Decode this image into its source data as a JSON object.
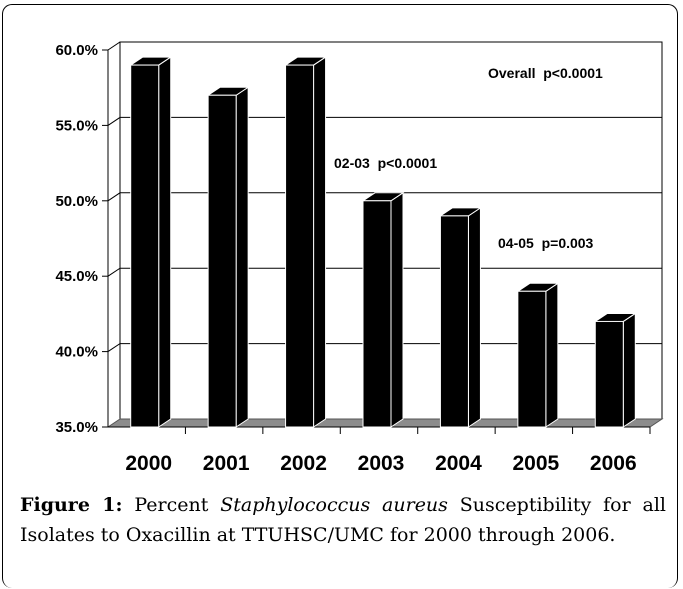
{
  "chart_data": {
    "type": "bar",
    "categories": [
      "2000",
      "2001",
      "2002",
      "2003",
      "2004",
      "2005",
      "2006"
    ],
    "values": [
      59.0,
      57.0,
      59.0,
      50.0,
      49.0,
      44.0,
      42.0
    ],
    "ylim": [
      35,
      60
    ],
    "yticks": [
      "35.0%",
      "40.0%",
      "45.0%",
      "50.0%",
      "55.0%",
      "60.0%"
    ],
    "grid": true,
    "bar_color": "#000000",
    "annotations": [
      "Overall  p<0.0001",
      "02-03  p<0.0001",
      "04-05  p=0.003"
    ]
  },
  "caption": {
    "label": "Figure 1:",
    "before": " Percent ",
    "species": "Staphylococcus aureus",
    "after": " Susceptibility for all Isolates to Oxacillin at TTUHSC/UMC for 2000 through 2006."
  }
}
